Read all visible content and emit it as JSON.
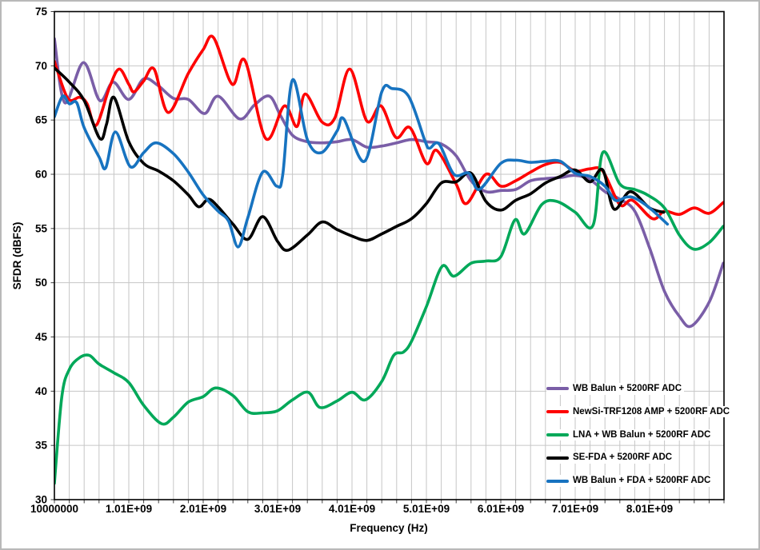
{
  "style": {
    "background": "#ffffff",
    "frame_color": "#b9b9b9",
    "grid_color": "#c6c6c6",
    "plot_border_color": "#000000",
    "tick_color": "#3c3c3c",
    "text_color": "#000000"
  },
  "chart_data": {
    "type": "line",
    "title": "",
    "xlabel": "Frequency (Hz)",
    "ylabel": "SFDR (dBFS)",
    "xlim_ghz": [
      0.01,
      9.01
    ],
    "ylim": [
      30,
      75
    ],
    "x_minor_step_ghz": 0.2,
    "y_tick_step": 5,
    "grid": "both",
    "legend_position": "inside-lower-right",
    "x_ticks": [
      {
        "v": 0.01,
        "label": "10000000"
      },
      {
        "v": 1.01,
        "label": "1.01E+09"
      },
      {
        "v": 2.01,
        "label": "2.01E+09"
      },
      {
        "v": 3.01,
        "label": "3.01E+09"
      },
      {
        "v": 4.01,
        "label": "4.01E+09"
      },
      {
        "v": 5.01,
        "label": "5.01E+09"
      },
      {
        "v": 6.01,
        "label": "6.01E+09"
      },
      {
        "v": 7.01,
        "label": "7.01E+09"
      },
      {
        "v": 8.01,
        "label": "8.01E+09"
      }
    ],
    "y_ticks": [
      {
        "v": 30,
        "label": "30"
      },
      {
        "v": 35,
        "label": "35"
      },
      {
        "v": 40,
        "label": "40"
      },
      {
        "v": 45,
        "label": "45"
      },
      {
        "v": 50,
        "label": "50"
      },
      {
        "v": 55,
        "label": "55"
      },
      {
        "v": 60,
        "label": "60"
      },
      {
        "v": 65,
        "label": "65"
      },
      {
        "v": 70,
        "label": "70"
      },
      {
        "v": 75,
        "label": "75"
      }
    ],
    "series": [
      {
        "name": "WB Balun + 5200RF ADC",
        "color": "#7a5ea7",
        "points": [
          [
            0.01,
            72.5
          ],
          [
            0.15,
            66.6
          ],
          [
            0.4,
            70.3
          ],
          [
            0.62,
            66.8
          ],
          [
            0.8,
            68.5
          ],
          [
            1.01,
            66.9
          ],
          [
            1.21,
            68.8
          ],
          [
            1.4,
            68.2
          ],
          [
            1.61,
            67.0
          ],
          [
            1.81,
            66.9
          ],
          [
            2.03,
            65.6
          ],
          [
            2.21,
            67.2
          ],
          [
            2.5,
            65.1
          ],
          [
            2.7,
            66.4
          ],
          [
            2.9,
            67.2
          ],
          [
            3.05,
            65.4
          ],
          [
            3.21,
            63.6
          ],
          [
            3.41,
            63.0
          ],
          [
            3.61,
            62.9
          ],
          [
            3.81,
            63.0
          ],
          [
            4.01,
            63.2
          ],
          [
            4.21,
            62.5
          ],
          [
            4.41,
            62.6
          ],
          [
            4.61,
            62.9
          ],
          [
            4.81,
            63.2
          ],
          [
            5.01,
            63.0
          ],
          [
            5.21,
            62.8
          ],
          [
            5.41,
            61.7
          ],
          [
            5.61,
            59.4
          ],
          [
            5.81,
            58.4
          ],
          [
            6.01,
            58.5
          ],
          [
            6.21,
            58.6
          ],
          [
            6.41,
            59.4
          ],
          [
            6.61,
            59.6
          ],
          [
            6.81,
            59.7
          ],
          [
            7.01,
            59.9
          ],
          [
            7.21,
            59.5
          ],
          [
            7.41,
            58.4
          ],
          [
            7.61,
            57.7
          ],
          [
            7.81,
            56.6
          ],
          [
            8.01,
            53.2
          ],
          [
            8.21,
            49.2
          ],
          [
            8.41,
            46.9
          ],
          [
            8.57,
            46.0
          ],
          [
            8.81,
            48.2
          ],
          [
            9.0,
            51.8
          ]
        ]
      },
      {
        "name": "NewSi-TRF1208 AMP + 5200RF ADC",
        "color": "#fe0000",
        "points": [
          [
            0.01,
            70.4
          ],
          [
            0.19,
            67.0
          ],
          [
            0.35,
            67.1
          ],
          [
            0.45,
            66.5
          ],
          [
            0.57,
            64.5
          ],
          [
            0.75,
            68.0
          ],
          [
            0.88,
            69.7
          ],
          [
            1.01,
            68.3
          ],
          [
            1.08,
            67.6
          ],
          [
            1.21,
            68.6
          ],
          [
            1.35,
            69.7
          ],
          [
            1.54,
            65.7
          ],
          [
            1.81,
            69.3
          ],
          [
            2.01,
            71.5
          ],
          [
            2.15,
            72.6
          ],
          [
            2.4,
            68.3
          ],
          [
            2.57,
            70.5
          ],
          [
            2.85,
            63.3
          ],
          [
            3.1,
            66.3
          ],
          [
            3.27,
            64.4
          ],
          [
            3.38,
            67.4
          ],
          [
            3.61,
            64.8
          ],
          [
            3.78,
            65.2
          ],
          [
            3.98,
            69.7
          ],
          [
            4.21,
            64.9
          ],
          [
            4.4,
            66.3
          ],
          [
            4.6,
            63.4
          ],
          [
            4.79,
            64.3
          ],
          [
            5.01,
            61.0
          ],
          [
            5.15,
            62.2
          ],
          [
            5.41,
            59.1
          ],
          [
            5.55,
            57.3
          ],
          [
            5.81,
            60.0
          ],
          [
            6.01,
            58.9
          ],
          [
            6.21,
            59.4
          ],
          [
            6.41,
            60.2
          ],
          [
            6.61,
            60.9
          ],
          [
            6.81,
            61.1
          ],
          [
            7.01,
            60.3
          ],
          [
            7.21,
            60.5
          ],
          [
            7.38,
            60.3
          ],
          [
            7.61,
            57.2
          ],
          [
            7.78,
            57.6
          ],
          [
            8.05,
            55.9
          ],
          [
            8.21,
            56.6
          ],
          [
            8.41,
            56.3
          ],
          [
            8.61,
            56.9
          ],
          [
            8.81,
            56.4
          ],
          [
            9.0,
            57.4
          ]
        ]
      },
      {
        "name": "LNA + WB Balun + 5200RF ADC",
        "color": "#00a859",
        "points": [
          [
            0.01,
            31.5
          ],
          [
            0.11,
            39.5
          ],
          [
            0.21,
            42.0
          ],
          [
            0.35,
            43.1
          ],
          [
            0.48,
            43.3
          ],
          [
            0.61,
            42.5
          ],
          [
            0.81,
            41.7
          ],
          [
            1.01,
            40.8
          ],
          [
            1.21,
            38.7
          ],
          [
            1.45,
            37.0
          ],
          [
            1.61,
            37.6
          ],
          [
            1.81,
            39.0
          ],
          [
            2.01,
            39.5
          ],
          [
            2.18,
            40.3
          ],
          [
            2.41,
            39.6
          ],
          [
            2.61,
            38.1
          ],
          [
            2.81,
            38.0
          ],
          [
            3.01,
            38.2
          ],
          [
            3.21,
            39.2
          ],
          [
            3.42,
            39.9
          ],
          [
            3.58,
            38.5
          ],
          [
            3.81,
            39.1
          ],
          [
            4.01,
            39.9
          ],
          [
            4.19,
            39.2
          ],
          [
            4.41,
            40.9
          ],
          [
            4.57,
            43.3
          ],
          [
            4.7,
            43.6
          ],
          [
            4.81,
            44.6
          ],
          [
            5.01,
            47.8
          ],
          [
            5.22,
            51.5
          ],
          [
            5.38,
            50.6
          ],
          [
            5.61,
            51.8
          ],
          [
            5.81,
            52.0
          ],
          [
            6.01,
            52.4
          ],
          [
            6.2,
            55.8
          ],
          [
            6.33,
            54.5
          ],
          [
            6.56,
            57.2
          ],
          [
            6.76,
            57.5
          ],
          [
            7.01,
            56.5
          ],
          [
            7.25,
            55.3
          ],
          [
            7.38,
            62.0
          ],
          [
            7.61,
            59.1
          ],
          [
            7.81,
            58.6
          ],
          [
            7.98,
            58.1
          ],
          [
            8.21,
            56.9
          ],
          [
            8.41,
            54.4
          ],
          [
            8.6,
            53.1
          ],
          [
            8.81,
            53.7
          ],
          [
            9.0,
            55.2
          ]
        ]
      },
      {
        "name": "SE-FDA + 5200RF ADC",
        "color": "#000000",
        "points": [
          [
            0.01,
            69.8
          ],
          [
            0.21,
            68.5
          ],
          [
            0.41,
            66.8
          ],
          [
            0.62,
            63.3
          ],
          [
            0.71,
            64.6
          ],
          [
            0.81,
            67.1
          ],
          [
            1.01,
            63.0
          ],
          [
            1.21,
            61.0
          ],
          [
            1.41,
            60.3
          ],
          [
            1.61,
            59.4
          ],
          [
            1.81,
            58.1
          ],
          [
            1.95,
            57.0
          ],
          [
            2.08,
            57.7
          ],
          [
            2.21,
            57.0
          ],
          [
            2.41,
            55.4
          ],
          [
            2.61,
            54.0
          ],
          [
            2.81,
            56.1
          ],
          [
            3.01,
            53.8
          ],
          [
            3.15,
            53.0
          ],
          [
            3.41,
            54.4
          ],
          [
            3.61,
            55.6
          ],
          [
            3.81,
            54.9
          ],
          [
            4.01,
            54.3
          ],
          [
            4.21,
            53.9
          ],
          [
            4.41,
            54.5
          ],
          [
            4.61,
            55.2
          ],
          [
            4.81,
            55.9
          ],
          [
            5.01,
            57.3
          ],
          [
            5.21,
            59.2
          ],
          [
            5.41,
            59.3
          ],
          [
            5.61,
            60.1
          ],
          [
            5.81,
            57.5
          ],
          [
            6.01,
            56.7
          ],
          [
            6.21,
            57.6
          ],
          [
            6.41,
            58.2
          ],
          [
            6.61,
            59.2
          ],
          [
            6.81,
            59.8
          ],
          [
            7.01,
            60.4
          ],
          [
            7.21,
            59.3
          ],
          [
            7.38,
            60.4
          ],
          [
            7.53,
            56.8
          ],
          [
            7.75,
            58.4
          ],
          [
            8.01,
            56.9
          ],
          [
            8.2,
            56.5
          ]
        ]
      },
      {
        "name": "WB Balun + FDA + 5200RF ADC",
        "color": "#1773c0",
        "points": [
          [
            0.01,
            65.3
          ],
          [
            0.12,
            67.2
          ],
          [
            0.21,
            66.5
          ],
          [
            0.31,
            66.6
          ],
          [
            0.41,
            64.3
          ],
          [
            0.61,
            61.6
          ],
          [
            0.7,
            60.6
          ],
          [
            0.83,
            63.9
          ],
          [
            1.03,
            60.7
          ],
          [
            1.21,
            62.0
          ],
          [
            1.38,
            62.9
          ],
          [
            1.61,
            61.9
          ],
          [
            1.81,
            60.2
          ],
          [
            2.01,
            58.1
          ],
          [
            2.21,
            56.6
          ],
          [
            2.35,
            55.7
          ],
          [
            2.48,
            53.3
          ],
          [
            2.61,
            56.0
          ],
          [
            2.81,
            60.2
          ],
          [
            3.0,
            58.9
          ],
          [
            3.08,
            60.0
          ],
          [
            3.21,
            68.7
          ],
          [
            3.41,
            63.2
          ],
          [
            3.6,
            62.0
          ],
          [
            3.81,
            64.0
          ],
          [
            3.9,
            65.1
          ],
          [
            4.18,
            61.2
          ],
          [
            4.41,
            67.6
          ],
          [
            4.55,
            67.9
          ],
          [
            4.77,
            67.2
          ],
          [
            4.99,
            63.1
          ],
          [
            5.05,
            62.4
          ],
          [
            5.18,
            62.8
          ],
          [
            5.38,
            60.0
          ],
          [
            5.58,
            60.1
          ],
          [
            5.72,
            58.6
          ],
          [
            6.01,
            61.0
          ],
          [
            6.21,
            61.3
          ],
          [
            6.41,
            61.1
          ],
          [
            6.61,
            61.2
          ],
          [
            6.81,
            61.2
          ],
          [
            7.01,
            60.1
          ],
          [
            7.21,
            59.8
          ],
          [
            7.41,
            58.9
          ],
          [
            7.55,
            57.6
          ],
          [
            7.7,
            57.9
          ],
          [
            7.81,
            57.8
          ],
          [
            8.01,
            56.9
          ],
          [
            8.25,
            55.4
          ]
        ]
      }
    ]
  }
}
